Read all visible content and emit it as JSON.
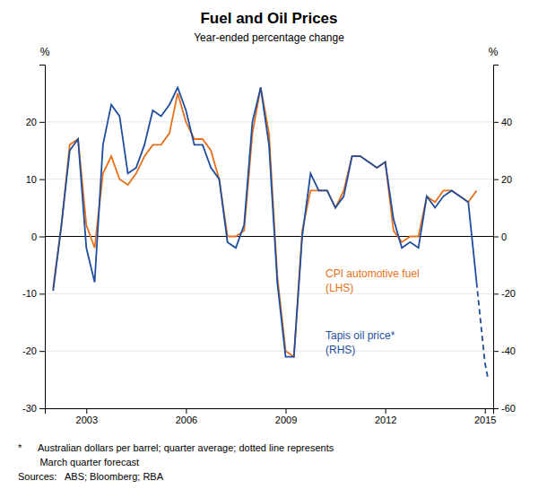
{
  "chart_data": {
    "type": "line",
    "title": "Fuel and Oil Prices",
    "subtitle": "Year-ended percentage change",
    "ylabel": "%",
    "y2label": "%",
    "xlim": [
      2001.75,
      2015.25
    ],
    "xticks": [
      2003,
      2006,
      2009,
      2012,
      2015
    ],
    "ylim": [
      -30,
      30
    ],
    "yticks": [
      -30,
      -20,
      -10,
      0,
      10,
      20
    ],
    "y2lim": [
      -60,
      60
    ],
    "y2ticks": [
      -60,
      -40,
      -20,
      0,
      20,
      40
    ],
    "grid": true,
    "annotations": [
      "*      Australian dollars per barrel; quarter average; dotted line represents",
      "        March quarter forecast",
      "Sources:   ABS; Bloomberg; RBA"
    ],
    "series": [
      {
        "name": "CPI automotive fuel\n(LHS)",
        "color": "#E8701A",
        "x": [
          2002.0,
          2002.25,
          2002.5,
          2002.75,
          2003.0,
          2003.25,
          2003.5,
          2003.75,
          2004.0,
          2004.25,
          2004.5,
          2004.75,
          2005.0,
          2005.25,
          2005.5,
          2005.75,
          2006.0,
          2006.25,
          2006.5,
          2006.75,
          2007.0,
          2007.25,
          2007.5,
          2007.75,
          2008.0,
          2008.25,
          2008.5,
          2008.75,
          2009.0,
          2009.25,
          2009.5,
          2009.75,
          2010.0,
          2010.25,
          2010.5,
          2010.75,
          2011.0,
          2011.25,
          2011.5,
          2011.75,
          2012.0,
          2012.25,
          2012.5,
          2012.75,
          2013.0,
          2013.25,
          2013.5,
          2013.75,
          2014.0,
          2014.25,
          2014.5,
          2014.75
        ],
        "values": [
          -9,
          2,
          16,
          17,
          2,
          -2,
          11,
          14,
          10,
          9,
          11,
          14,
          16,
          16,
          18,
          25,
          20,
          17,
          17,
          15,
          10,
          0,
          0,
          1,
          18,
          26,
          18,
          -7,
          -20,
          -21,
          1,
          8,
          8,
          8,
          5,
          8,
          14,
          14,
          13,
          12,
          13,
          1,
          -1,
          0,
          0,
          7,
          6,
          8,
          8,
          7,
          6,
          8
        ]
      },
      {
        "name": "Tapis oil price*\n(RHS)",
        "color": "#1F4E9E",
        "axis": "y2",
        "x": [
          2002.0,
          2002.25,
          2002.5,
          2002.75,
          2003.0,
          2003.25,
          2003.5,
          2003.75,
          2004.0,
          2004.25,
          2004.5,
          2004.75,
          2005.0,
          2005.25,
          2005.5,
          2005.75,
          2006.0,
          2006.25,
          2006.5,
          2006.75,
          2007.0,
          2007.25,
          2007.5,
          2007.75,
          2008.0,
          2008.25,
          2008.5,
          2008.75,
          2009.0,
          2009.25,
          2009.5,
          2009.75,
          2010.0,
          2010.25,
          2010.5,
          2010.75,
          2011.0,
          2011.25,
          2011.5,
          2011.75,
          2012.0,
          2012.25,
          2012.5,
          2012.75,
          2013.0,
          2013.25,
          2013.5,
          2013.75,
          2014.0,
          2014.25,
          2014.5,
          2014.75
        ],
        "values": [
          -19,
          4,
          30,
          34,
          -4,
          -16,
          32,
          46,
          42,
          22,
          24,
          32,
          44,
          42,
          46,
          52,
          44,
          32,
          32,
          24,
          20,
          -2,
          -4,
          4,
          40,
          52,
          32,
          -16,
          -42,
          -42,
          0,
          22,
          16,
          16,
          10,
          14,
          28,
          28,
          26,
          24,
          26,
          6,
          -4,
          -2,
          -4,
          14,
          10,
          14,
          16,
          14,
          12,
          -16
        ]
      },
      {
        "color": "#1F4E9E",
        "axis": "y2",
        "line_style": "dashed",
        "x": [
          2014.75,
          2015.0,
          2015.1
        ],
        "values": [
          -16,
          -44,
          -50
        ]
      }
    ]
  }
}
